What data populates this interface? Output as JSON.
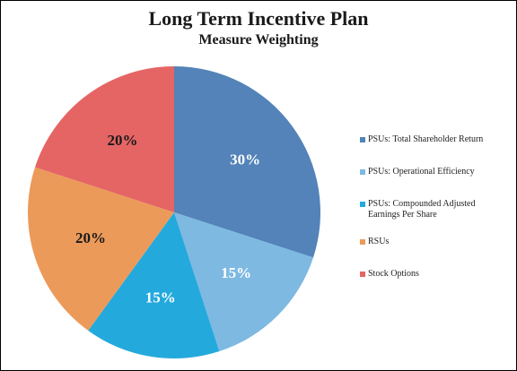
{
  "chart_data": {
    "type": "pie",
    "title": "Long Term Incentive Plan",
    "subtitle": "Measure Weighting",
    "start_angle_deg": 0,
    "direction": "clockwise",
    "slices": [
      {
        "label": "PSUs: Total Shareholder Return",
        "value": 30,
        "value_label": "30%",
        "color": "#5383b8",
        "label_color": "#ffffff"
      },
      {
        "label": "PSUs: Operational Efficiency",
        "value": 15,
        "value_label": "15%",
        "color": "#7eb9e2",
        "label_color": "#ffffff"
      },
      {
        "label": "PSUs: Compounded Adjusted Earnings Per Share",
        "value": 15,
        "value_label": "15%",
        "color": "#24a9dc",
        "label_color": "#ffffff"
      },
      {
        "label": "RSUs",
        "value": 20,
        "value_label": "20%",
        "color": "#ec9a5a",
        "label_color": "#1a1a1a"
      },
      {
        "label": "Stock Options",
        "value": 20,
        "value_label": "20%",
        "color": "#e56565",
        "label_color": "#1a1a1a"
      }
    ],
    "legend_position": "right"
  },
  "legend": {
    "items": [
      {
        "line1": "PSUs: Total Shareholder Return",
        "line2": ""
      },
      {
        "line1": "PSUs: Operational Efficiency",
        "line2": ""
      },
      {
        "line1": "PSUs: Compounded Adjusted",
        "line2": "Earnings Per Share"
      },
      {
        "line1": "RSUs",
        "line2": ""
      },
      {
        "line1": "Stock Options",
        "line2": ""
      }
    ]
  }
}
